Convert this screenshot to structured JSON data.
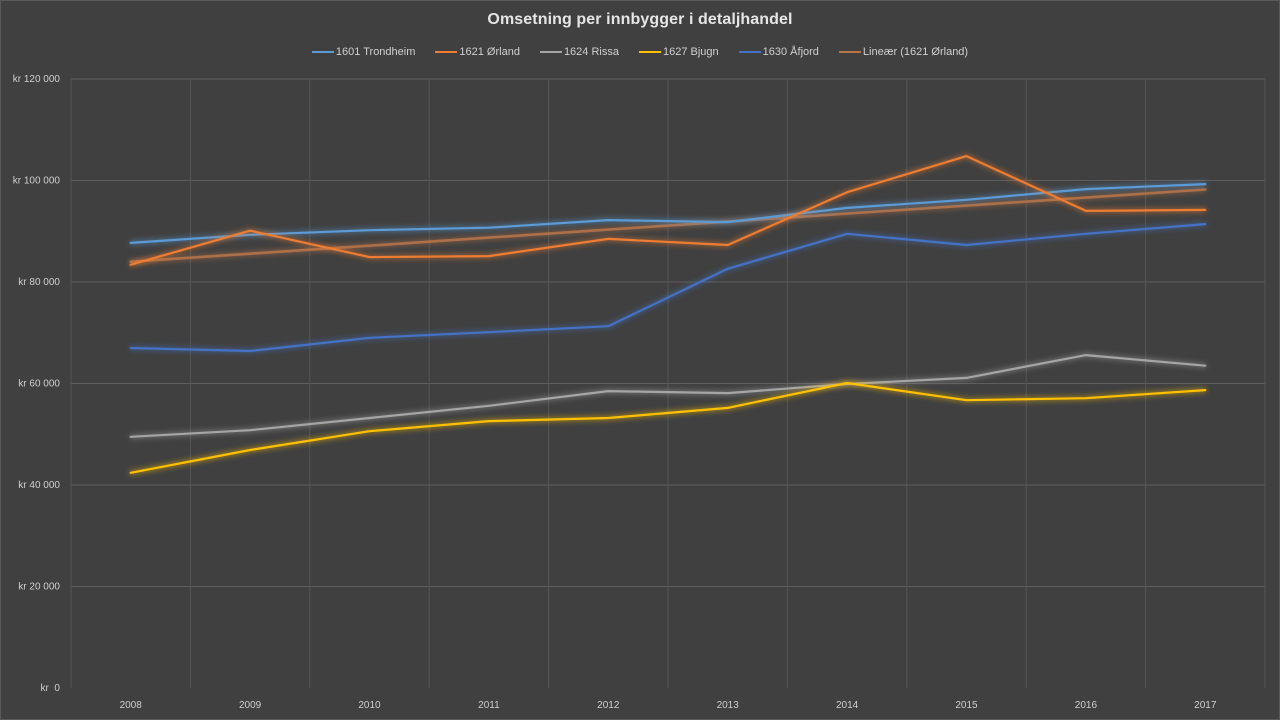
{
  "chart_data": {
    "type": "line",
    "title": "Omsetning per innbygger i detaljhandel",
    "xlabel": "",
    "ylabel": "",
    "categories": [
      "2008",
      "2009",
      "2010",
      "2011",
      "2012",
      "2013",
      "2014",
      "2015",
      "2016",
      "2017"
    ],
    "ylim": [
      0,
      120000
    ],
    "yticks": [
      0,
      20000,
      40000,
      60000,
      80000,
      100000,
      120000
    ],
    "ytick_labels": [
      "kr  0",
      "kr 20 000",
      "kr 40 000",
      "kr 60 000",
      "kr 80 000",
      "kr 100 000",
      "kr 120 000"
    ],
    "grid": true,
    "legend_position": "top",
    "series": [
      {
        "name": "1601 Trondheim",
        "color": "#5b9bd5",
        "values": [
          87700,
          89300,
          90200,
          90700,
          92200,
          91800,
          94600,
          96200,
          98300,
          99300
        ]
      },
      {
        "name": "1621 Ørland",
        "color": "#ed7d31",
        "values": [
          83400,
          90100,
          84900,
          85100,
          88500,
          87300,
          97700,
          104800,
          94000,
          94200
        ]
      },
      {
        "name": "1624 Rissa",
        "color": "#a5a5a5",
        "values": [
          49500,
          50800,
          53200,
          55600,
          58500,
          58100,
          59900,
          61100,
          65600,
          63500
        ]
      },
      {
        "name": "1627 Bjugn",
        "color": "#ffc000",
        "values": [
          42400,
          46900,
          50600,
          52600,
          53200,
          55200,
          60100,
          56700,
          57100,
          58700
        ]
      },
      {
        "name": "1630 Åfjord",
        "color": "#4472c4",
        "values": [
          67000,
          66400,
          69000,
          70100,
          71300,
          82600,
          89500,
          87300,
          89500,
          91400
        ]
      },
      {
        "name": "Lineær (1621 Ørland)",
        "color": "#b8754a",
        "trendline": true,
        "values": [
          84000,
          85580,
          87160,
          88740,
          90320,
          91900,
          93480,
          95060,
          96640,
          98220
        ]
      }
    ]
  }
}
